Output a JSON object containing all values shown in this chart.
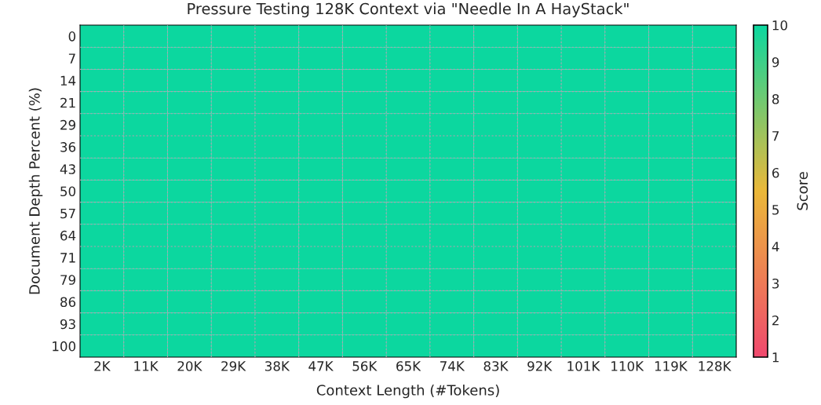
{
  "chart_data": {
    "type": "heatmap",
    "title": "Pressure Testing 128K Context via \"Needle In A HayStack\"",
    "xlabel": "Context Length (#Tokens)",
    "ylabel": "Document Depth Percent (%)",
    "clabel": "Score",
    "categories": [
      "2K",
      "11K",
      "20K",
      "29K",
      "38K",
      "47K",
      "56K",
      "65K",
      "74K",
      "83K",
      "92K",
      "101K",
      "110K",
      "119K",
      "128K"
    ],
    "y_categories": [
      "0",
      "7",
      "14",
      "21",
      "29",
      "36",
      "43",
      "50",
      "57",
      "64",
      "71",
      "79",
      "86",
      "93",
      "100"
    ],
    "cells": [
      [
        10,
        10,
        10,
        10,
        10,
        10,
        10,
        10,
        10,
        10,
        10,
        10,
        10,
        10,
        10
      ],
      [
        10,
        10,
        10,
        10,
        10,
        10,
        10,
        10,
        10,
        10,
        10,
        10,
        10,
        10,
        10
      ],
      [
        10,
        10,
        10,
        10,
        10,
        10,
        10,
        10,
        10,
        10,
        10,
        10,
        10,
        10,
        10
      ],
      [
        10,
        10,
        10,
        10,
        10,
        10,
        10,
        10,
        10,
        10,
        10,
        10,
        10,
        10,
        10
      ],
      [
        10,
        10,
        10,
        10,
        10,
        10,
        10,
        10,
        10,
        10,
        10,
        10,
        10,
        10,
        10
      ],
      [
        10,
        10,
        10,
        10,
        10,
        10,
        10,
        10,
        10,
        10,
        10,
        10,
        10,
        10,
        10
      ],
      [
        10,
        10,
        10,
        10,
        10,
        10,
        10,
        10,
        10,
        10,
        10,
        10,
        10,
        10,
        10
      ],
      [
        10,
        10,
        10,
        10,
        10,
        10,
        10,
        10,
        10,
        10,
        10,
        10,
        10,
        10,
        10
      ],
      [
        10,
        10,
        10,
        10,
        10,
        10,
        10,
        10,
        10,
        10,
        10,
        10,
        10,
        10,
        10
      ],
      [
        10,
        10,
        10,
        10,
        10,
        10,
        10,
        10,
        10,
        10,
        10,
        10,
        10,
        10,
        10
      ],
      [
        10,
        10,
        10,
        10,
        10,
        10,
        10,
        10,
        10,
        10,
        10,
        10,
        10,
        10,
        10
      ],
      [
        10,
        10,
        10,
        10,
        10,
        10,
        10,
        10,
        10,
        10,
        10,
        10,
        10,
        10,
        10
      ],
      [
        10,
        10,
        10,
        10,
        10,
        10,
        10,
        10,
        10,
        10,
        10,
        10,
        10,
        10,
        10
      ],
      [
        10,
        10,
        10,
        10,
        10,
        10,
        10,
        10,
        10,
        10,
        10,
        10,
        10,
        10,
        10
      ],
      [
        10,
        10,
        10,
        10,
        10,
        10,
        10,
        10,
        10,
        10,
        10,
        10,
        10,
        10,
        10
      ]
    ],
    "clim": [
      1,
      10
    ],
    "cticks": [
      1,
      2,
      3,
      4,
      5,
      6,
      7,
      8,
      9,
      10
    ],
    "colors": [
      "#F0496E",
      "#EBB839",
      "#0CD79F"
    ],
    "grid": true
  }
}
